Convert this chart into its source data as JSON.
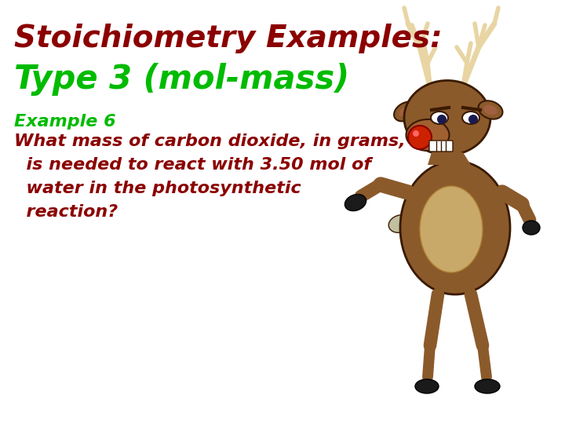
{
  "title_line1": "Stoichiometry Examples:",
  "title_line2": "Type 3 (mol-mass)",
  "title_line1_color": "#8B0000",
  "title_line2_color": "#00BB00",
  "example_label": "Example 6",
  "example_label_color": "#00BB00",
  "body_lines": [
    "What mass of carbon dioxide, in grams,",
    "  is needed to react with 3.50 mol of",
    "  water in the photosynthetic",
    "  reaction?"
  ],
  "body_color": "#8B0000",
  "background_color": "#FFFFFF",
  "title1_fontsize": 28,
  "title2_fontsize": 30,
  "example_fontsize": 16,
  "body_fontsize": 16
}
